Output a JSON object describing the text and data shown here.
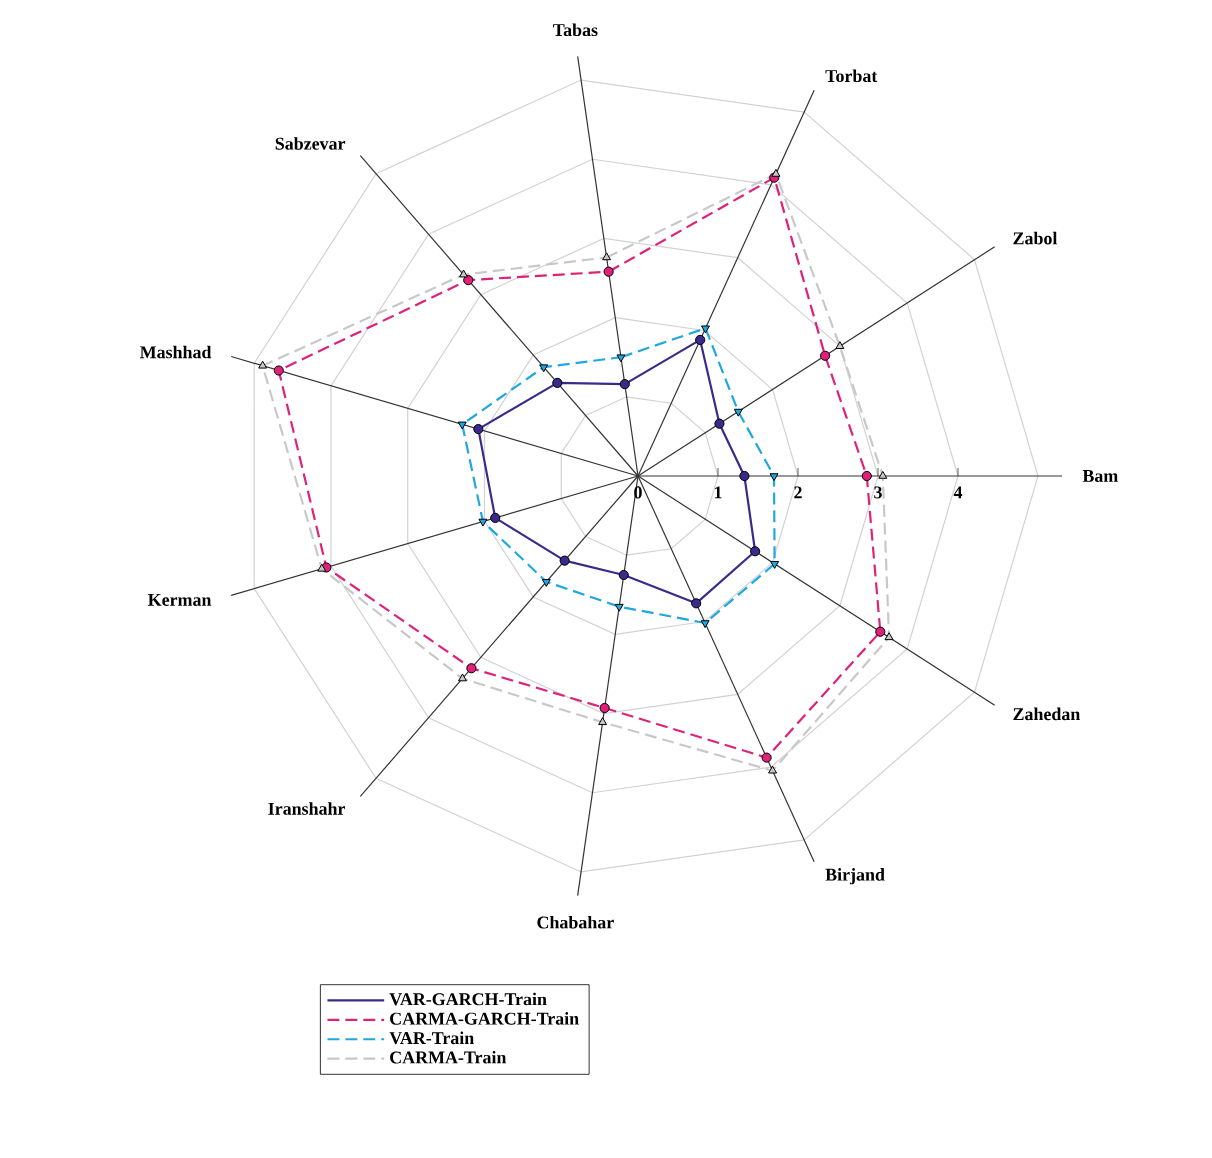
{
  "chart_data": {
    "type": "radar",
    "categories": [
      "Tabas",
      "Torbat",
      "Zabol",
      "Bam",
      "Zahedan",
      "Birjand",
      "Chabahar",
      "Iranshahr",
      "Kerman",
      "Mashhad",
      "Sabzevar"
    ],
    "ylim": [
      0,
      5
    ],
    "yticks": [
      0,
      1,
      2,
      3,
      4
    ],
    "grid": true,
    "legend": "bottom left",
    "series": [
      {
        "name": "VAR-GARCH-Train",
        "color": "#3b2a8c",
        "line_style": "solid",
        "marker": "circle",
        "values": [
          1.16,
          1.87,
          1.21,
          1.33,
          1.74,
          1.75,
          1.25,
          1.4,
          1.86,
          2.08,
          1.54
        ]
      },
      {
        "name": "CARMA-GARCH-Train",
        "color": "#e0217a",
        "line_style": "dashed",
        "marker": "circle",
        "values": [
          2.58,
          4.1,
          2.78,
          2.86,
          3.6,
          3.87,
          2.93,
          3.18,
          4.06,
          4.68,
          3.24
        ]
      },
      {
        "name": "VAR-Train",
        "color": "#1ea7e0",
        "line_style": "dashed",
        "marker": "triangle_down",
        "values": [
          1.5,
          2.03,
          1.49,
          1.7,
          2.03,
          2.02,
          1.65,
          1.75,
          2.02,
          2.29,
          1.8
        ]
      },
      {
        "name": "CARMA-Train",
        "color": "#c8c8c8",
        "line_style": "dashed",
        "marker": "triangle",
        "values": [
          2.76,
          4.15,
          3.0,
          3.06,
          3.73,
          4.05,
          3.11,
          3.35,
          4.12,
          4.89,
          3.33
        ]
      }
    ]
  }
}
